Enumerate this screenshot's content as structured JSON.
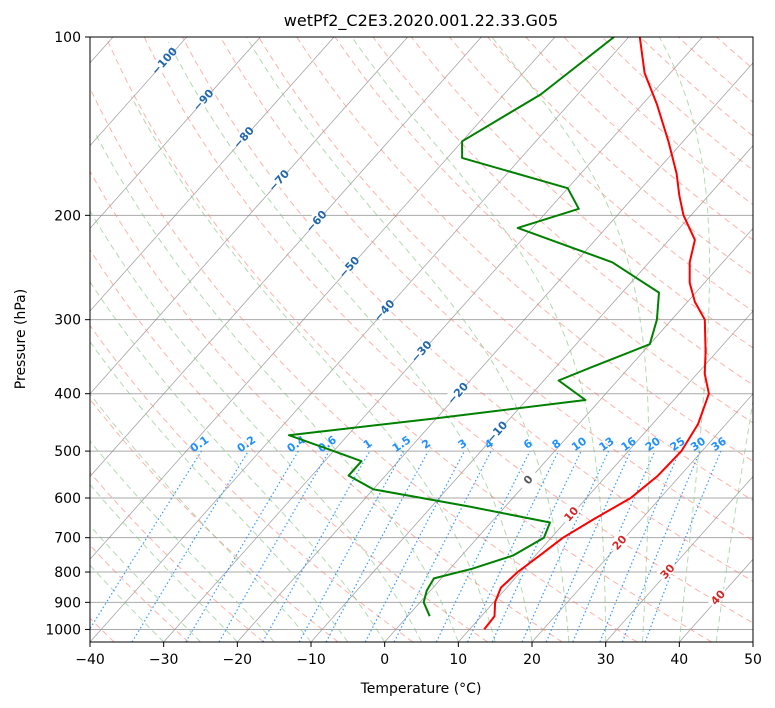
{
  "chart_data": {
    "type": "line",
    "subtype": "skew-T log-P diagram",
    "title": "wetPf2_C2E3.2020.001.22.33.G05",
    "xlabel": "Temperature (°C)",
    "ylabel": "Pressure (hPa)",
    "xlim": [
      -40,
      50
    ],
    "ylim": [
      1050,
      100
    ],
    "y_scale": "log",
    "x_ticks": [
      "−40",
      "−30",
      "−20",
      "−10",
      "0",
      "10",
      "20",
      "30",
      "40",
      "50"
    ],
    "y_ticks": [
      "100",
      "200",
      "300",
      "400",
      "500",
      "600",
      "700",
      "800",
      "900",
      "1000"
    ],
    "grid": true,
    "colors": {
      "temperature": "#ff0000",
      "dewpoint": "#008000",
      "isotherm": "#808080",
      "dry_adiabat": "#fa8072",
      "moist_adiabat": "#7fbf7f",
      "mixing_ratio": "#1e90ff",
      "isobar": "#a9a9a9"
    },
    "series": [
      {
        "name": "",
        "color": "#ff0000",
        "points": [
          [
            1000,
            12.0
          ],
          [
            950,
            11.8
          ],
          [
            900,
            10.2
          ],
          [
            850,
            9.2
          ],
          [
            800,
            9.6
          ],
          [
            750,
            10.6
          ],
          [
            700,
            11.6
          ],
          [
            650,
            13.6
          ],
          [
            600,
            16.0
          ],
          [
            550,
            17.0
          ],
          [
            500,
            17.2
          ],
          [
            450,
            16.2
          ],
          [
            400,
            14.0
          ],
          [
            370,
            11.0
          ],
          [
            340,
            8.5
          ],
          [
            300,
            4.5
          ],
          [
            280,
            1.0
          ],
          [
            260,
            -2.0
          ],
          [
            240,
            -4.5
          ],
          [
            220,
            -6.5
          ],
          [
            200,
            -11.0
          ],
          [
            185,
            -14.0
          ],
          [
            170,
            -17.0
          ],
          [
            150,
            -22.0
          ],
          [
            130,
            -28.0
          ],
          [
            115,
            -33.5
          ],
          [
            100,
            -38.5
          ]
        ]
      },
      {
        "name": "",
        "color": "#008000",
        "points": [
          [
            950,
            3.0
          ],
          [
            900,
            0.5
          ],
          [
            860,
            -0.5
          ],
          [
            820,
            -1.0
          ],
          [
            790,
            3.0
          ],
          [
            750,
            7.0
          ],
          [
            700,
            9.0
          ],
          [
            660,
            8.0
          ],
          [
            620,
            -5.0
          ],
          [
            580,
            -20.0
          ],
          [
            550,
            -25.0
          ],
          [
            520,
            -25.0
          ],
          [
            500,
            -30.0
          ],
          [
            470,
            -38.0
          ],
          [
            440,
            -20.0
          ],
          [
            410,
            -2.0
          ],
          [
            380,
            -8.0
          ],
          [
            360,
            -5.0
          ],
          [
            330,
            0.0
          ],
          [
            300,
            -2.0
          ],
          [
            270,
            -5.0
          ],
          [
            240,
            -15.0
          ],
          [
            210,
            -32.0
          ],
          [
            195,
            -26.0
          ],
          [
            180,
            -30.0
          ],
          [
            160,
            -48.0
          ],
          [
            150,
            -50.0
          ],
          [
            125,
            -45.0
          ],
          [
            100,
            -42.0
          ]
        ]
      }
    ],
    "dry_adiabat_labels": [
      "−100",
      "−90",
      "−80",
      "−70",
      "−60",
      "−50",
      "−40",
      "−30",
      "−20",
      "−10",
      "0",
      "10",
      "20",
      "30",
      "40"
    ],
    "mixing_ratio_labels": [
      "0.1",
      "0.2",
      "0.4",
      "0.6",
      "1",
      "1.5",
      "2",
      "3",
      "4",
      "6",
      "8",
      "10",
      "13",
      "16",
      "20",
      "25",
      "30",
      "36"
    ]
  }
}
